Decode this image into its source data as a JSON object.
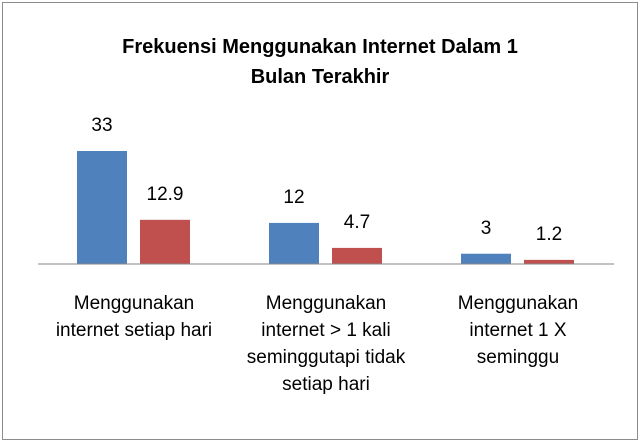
{
  "chart_data": {
    "type": "bar",
    "title": "Frekuensi Menggunakan Internet Dalam 1 Bulan Terakhir",
    "categories": [
      "Menggunakan internet setiap hari",
      "Menggunakan internet > 1 kali seminggutapi tidak setiap hari",
      "Menggunakan internet 1 X seminggu"
    ],
    "series": [
      {
        "color": "#4f81bd",
        "values": [
          33,
          12,
          3
        ]
      },
      {
        "color": "#c0504d",
        "values": [
          12.9,
          4.7,
          1.2
        ]
      }
    ]
  }
}
